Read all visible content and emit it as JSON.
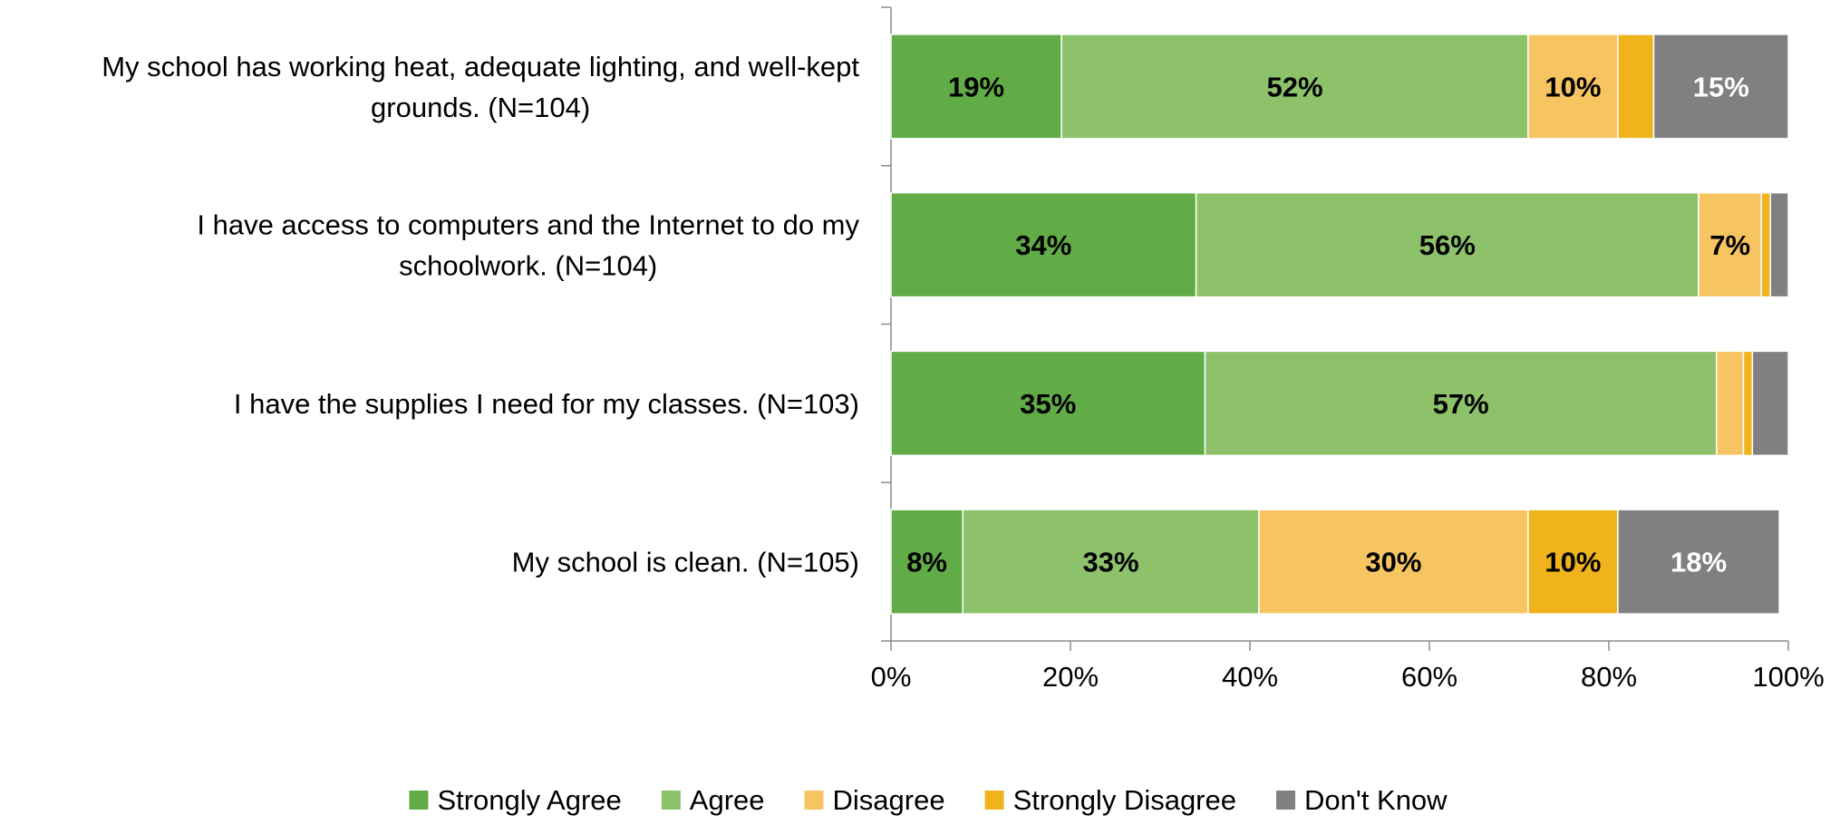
{
  "chart_data": {
    "type": "bar",
    "orientation": "horizontal",
    "stacked": true,
    "categories": [
      "My school has working heat, adequate lighting, and well-kept grounds. (N=104)",
      "I have access to computers and the Internet to do my schoolwork. (N=104)",
      "I have the supplies I need for my classes. (N=103)",
      "My school is clean. (N=105)"
    ],
    "series": [
      {
        "name": "Strongly Agree",
        "color": "#62AC47",
        "label_color": "#000000",
        "values": [
          19,
          34,
          35,
          8
        ],
        "labels": [
          "19%",
          "34%",
          "35%",
          "8%"
        ]
      },
      {
        "name": "Agree",
        "color": "#8DC26B",
        "label_color": "#000000",
        "values": [
          52,
          56,
          57,
          33
        ],
        "labels": [
          "52%",
          "56%",
          "57%",
          "33%"
        ]
      },
      {
        "name": "Disagree",
        "color": "#F7C462",
        "label_color": "#000000",
        "values": [
          10,
          7,
          3,
          30
        ],
        "labels": [
          "10%",
          "7%",
          "",
          "30%"
        ]
      },
      {
        "name": "Strongly Disagree",
        "color": "#F0B31C",
        "label_color": "#000000",
        "values": [
          4,
          1,
          1,
          10
        ],
        "labels": [
          "",
          "",
          "",
          "10%"
        ]
      },
      {
        "name": "Don't Know",
        "color": "#808080",
        "label_color": "#FFFFFF",
        "values": [
          15,
          2,
          4,
          18
        ],
        "labels": [
          "15%",
          "",
          "",
          "18%"
        ]
      }
    ],
    "xlim": [
      0,
      100
    ],
    "xticks": [
      "0%",
      "20%",
      "40%",
      "60%",
      "80%",
      "100%"
    ],
    "xlabel": "",
    "ylabel": "",
    "title": "",
    "grid": false,
    "legend_position": "bottom"
  }
}
